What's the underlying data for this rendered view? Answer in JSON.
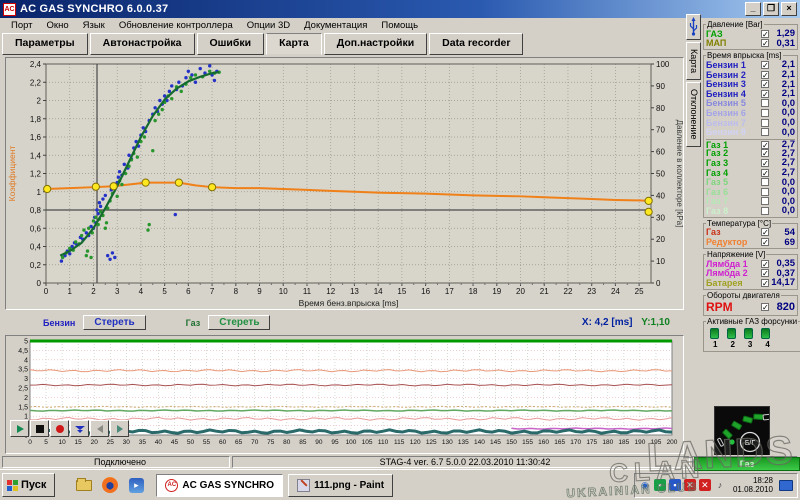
{
  "window": {
    "title": "AC GAS SYNCHRO  6.0.0.37"
  },
  "menu": {
    "items": [
      "Порт",
      "Окно",
      "Язык",
      "Обновление контроллера",
      "Опции 3D",
      "Документация",
      "Помощь"
    ]
  },
  "tabs": {
    "items": [
      {
        "label": "Параметры",
        "active": false
      },
      {
        "label": "Автонастройка",
        "active": false
      },
      {
        "label": "Ошибки",
        "active": false
      },
      {
        "label": "Карта",
        "active": true
      },
      {
        "label": "Доп.настройки",
        "active": false
      },
      {
        "label": "Data recorder",
        "active": false
      }
    ]
  },
  "side_tabs": {
    "items": [
      "Карта",
      "Отклонение"
    ]
  },
  "map_footer": {
    "petrol_label": "Бензин",
    "petrol_clear": "Стереть",
    "gas_label": "Газ",
    "gas_clear": "Стереть",
    "cursor_x": "X:  4,2 [ms]",
    "cursor_y": "Y:1,10"
  },
  "chart_data": [
    {
      "type": "scatter",
      "xlabel": "Время бенз.впрыска [ms]",
      "ylabel_left": "Коэффициент",
      "ylabel_right": "Давление в коллекторе [kPa]",
      "xlim": [
        0,
        25.5
      ],
      "x_tick_step": 1,
      "ylim_left": [
        0,
        2.4
      ],
      "y_left_step": 0.2,
      "ylim_right": [
        0,
        100
      ],
      "y_right_step": 10,
      "grid": true,
      "crosshair": {
        "x": 2.15,
        "y": 0.8
      },
      "fit_curve": {
        "color": "#156b2f",
        "points": [
          [
            0.6,
            0.3
          ],
          [
            1.0,
            0.35
          ],
          [
            1.5,
            0.44
          ],
          [
            2.0,
            0.6
          ],
          [
            2.5,
            0.82
          ],
          [
            3.0,
            1.06
          ],
          [
            3.5,
            1.33
          ],
          [
            4.0,
            1.6
          ],
          [
            4.5,
            1.83
          ],
          [
            5.0,
            2.01
          ],
          [
            5.5,
            2.13
          ],
          [
            6.0,
            2.21
          ],
          [
            6.5,
            2.26
          ],
          [
            7.0,
            2.3
          ],
          [
            7.3,
            2.31
          ]
        ]
      },
      "pressure_line": {
        "color": "#f08018",
        "points": [
          [
            0,
            1.03
          ],
          [
            1,
            1.04
          ],
          [
            2,
            1.05
          ],
          [
            2.85,
            1.06
          ],
          [
            3.5,
            1.08
          ],
          [
            4.2,
            1.1
          ],
          [
            5,
            1.1
          ],
          [
            5.6,
            1.1
          ],
          [
            6.3,
            1.07
          ],
          [
            7,
            1.05
          ],
          [
            8,
            1.04
          ],
          [
            9,
            1.04
          ],
          [
            10,
            1.03
          ],
          [
            11,
            1.02
          ],
          [
            12,
            1.01
          ],
          [
            13,
            1.0
          ],
          [
            14,
            0.99
          ],
          [
            15,
            0.985
          ],
          [
            16,
            0.98
          ],
          [
            17,
            0.97
          ],
          [
            18,
            0.96
          ],
          [
            19,
            0.955
          ],
          [
            20,
            0.95
          ],
          [
            21,
            0.94
          ],
          [
            22,
            0.93
          ],
          [
            23,
            0.92
          ],
          [
            24,
            0.91
          ],
          [
            25,
            0.905
          ],
          [
            25.4,
            0.9
          ]
        ],
        "markers": [
          [
            0.05,
            1.03
          ],
          [
            2.1,
            1.055
          ],
          [
            2.85,
            1.06
          ],
          [
            4.2,
            1.1
          ],
          [
            5.6,
            1.1
          ],
          [
            7.0,
            1.05
          ],
          [
            25.4,
            0.9
          ],
          [
            25.4,
            0.78
          ]
        ]
      },
      "scatter_blue": {
        "color": "#2432c8",
        "points": [
          [
            0.65,
            0.24
          ],
          [
            0.8,
            0.3
          ],
          [
            0.9,
            0.35
          ],
          [
            1.0,
            0.32
          ],
          [
            1.1,
            0.4
          ],
          [
            1.2,
            0.44
          ],
          [
            1.3,
            0.42
          ],
          [
            1.45,
            0.5
          ],
          [
            1.55,
            0.48
          ],
          [
            1.7,
            0.55
          ],
          [
            1.8,
            0.52
          ],
          [
            1.9,
            0.62
          ],
          [
            2.0,
            0.6
          ],
          [
            2.05,
            0.72
          ],
          [
            2.1,
            0.66
          ],
          [
            2.15,
            0.8
          ],
          [
            2.2,
            0.76
          ],
          [
            2.25,
            0.88
          ],
          [
            2.3,
            0.84
          ],
          [
            2.4,
            0.92
          ],
          [
            2.5,
            0.96
          ],
          [
            2.6,
            0.3
          ],
          [
            2.7,
            0.26
          ],
          [
            2.75,
            1.02
          ],
          [
            2.8,
            0.33
          ],
          [
            2.9,
            0.28
          ],
          [
            3.0,
            1.1
          ],
          [
            3.05,
            1.16
          ],
          [
            3.1,
            1.22
          ],
          [
            3.2,
            1.18
          ],
          [
            3.3,
            1.3
          ],
          [
            3.45,
            1.26
          ],
          [
            3.5,
            1.4
          ],
          [
            3.6,
            1.36
          ],
          [
            3.7,
            1.48
          ],
          [
            3.8,
            1.55
          ],
          [
            3.9,
            1.5
          ],
          [
            4.0,
            1.62
          ],
          [
            4.1,
            1.7
          ],
          [
            4.2,
            1.66
          ],
          [
            4.35,
            1.78
          ],
          [
            4.5,
            1.85
          ],
          [
            4.6,
            1.92
          ],
          [
            4.7,
            1.88
          ],
          [
            4.8,
            2.0
          ],
          [
            4.9,
            1.96
          ],
          [
            5.0,
            2.05
          ],
          [
            5.1,
            2.0
          ],
          [
            5.2,
            2.1
          ],
          [
            5.3,
            2.16
          ],
          [
            5.45,
            0.75
          ],
          [
            5.5,
            2.12
          ],
          [
            5.6,
            2.2
          ],
          [
            5.75,
            2.16
          ],
          [
            5.9,
            2.25
          ],
          [
            6.0,
            2.32
          ],
          [
            6.15,
            2.28
          ],
          [
            6.3,
            2.2
          ],
          [
            6.5,
            2.35
          ],
          [
            6.7,
            2.3
          ],
          [
            6.9,
            2.38
          ],
          [
            7.0,
            2.28
          ],
          [
            7.1,
            2.22
          ],
          [
            7.2,
            2.32
          ]
        ]
      },
      "scatter_green": {
        "color": "#28962c",
        "points": [
          [
            0.7,
            0.28
          ],
          [
            0.85,
            0.33
          ],
          [
            1.0,
            0.38
          ],
          [
            1.15,
            0.36
          ],
          [
            1.25,
            0.45
          ],
          [
            1.4,
            0.43
          ],
          [
            1.5,
            0.52
          ],
          [
            1.6,
            0.58
          ],
          [
            1.7,
            0.3
          ],
          [
            1.75,
            0.35
          ],
          [
            1.8,
            0.6
          ],
          [
            1.9,
            0.28
          ],
          [
            1.95,
            0.55
          ],
          [
            2.0,
            0.68
          ],
          [
            2.1,
            0.72
          ],
          [
            2.2,
            0.64
          ],
          [
            2.25,
            0.7
          ],
          [
            2.3,
            0.78
          ],
          [
            2.4,
            0.74
          ],
          [
            2.5,
            0.6
          ],
          [
            2.55,
            0.66
          ],
          [
            2.6,
            0.82
          ],
          [
            2.7,
            0.9
          ],
          [
            2.8,
            0.98
          ],
          [
            2.9,
            1.05
          ],
          [
            3.0,
            0.95
          ],
          [
            3.1,
            1.12
          ],
          [
            3.2,
            1.08
          ],
          [
            3.35,
            1.2
          ],
          [
            3.5,
            1.28
          ],
          [
            3.6,
            1.35
          ],
          [
            3.7,
            1.42
          ],
          [
            3.85,
            1.38
          ],
          [
            4.0,
            1.55
          ],
          [
            4.15,
            1.6
          ],
          [
            4.3,
            0.58
          ],
          [
            4.35,
            0.64
          ],
          [
            4.5,
            1.45
          ],
          [
            4.6,
            1.78
          ],
          [
            4.75,
            1.85
          ],
          [
            4.9,
            1.9
          ],
          [
            5.0,
            1.98
          ],
          [
            5.15,
            2.05
          ],
          [
            5.3,
            2.02
          ],
          [
            5.5,
            2.15
          ],
          [
            5.7,
            2.1
          ],
          [
            5.9,
            2.18
          ],
          [
            6.1,
            2.25
          ],
          [
            6.3,
            2.28
          ],
          [
            6.6,
            2.26
          ],
          [
            6.9,
            2.32
          ],
          [
            7.1,
            2.3
          ],
          [
            7.3,
            2.31
          ]
        ]
      }
    },
    {
      "type": "line",
      "xlim": [
        0,
        200
      ],
      "x_tick_step": 5,
      "ylim": [
        0,
        5
      ],
      "y_tick_step": 0.5,
      "grid": true,
      "series": [
        {
          "name": "upper-limit",
          "y": 5.0,
          "color": "#009900",
          "width": 3,
          "amp": 0
        },
        {
          "name": "trace-salmon-high",
          "y": 3.42,
          "color": "#e89878",
          "width": 1,
          "amp": 0.04
        },
        {
          "name": "trace-dark-red",
          "y": 2.66,
          "color": "#a85050",
          "width": 1,
          "amp": 0.03
        },
        {
          "name": "trace-olive-dotted",
          "y": 1.5,
          "color": "#c8a868",
          "width": 1,
          "amp": 0.02,
          "dash": "2,2"
        },
        {
          "name": "trace-green",
          "y": 1.3,
          "color": "#60a860",
          "width": 1.5,
          "amp": 0.02
        },
        {
          "name": "trace-salmon-low",
          "y": 0.86,
          "color": "#e89898",
          "width": 1,
          "amp": 0.05
        },
        {
          "name": "trace-magenta",
          "y": 0.34,
          "color": "#c864c8",
          "width": 1.5,
          "amp": 0.02,
          "from": 150
        },
        {
          "name": "noise-band",
          "y": 0.18,
          "color": "#2a6a6a",
          "width": 3,
          "amp": 0.06
        }
      ]
    }
  ],
  "right_panel": {
    "groups": [
      {
        "title": "Давление [Bar]",
        "rows": [
          {
            "label": "ГАЗ",
            "color": "#00a000",
            "checked": true,
            "value": "1,29"
          },
          {
            "label": "МАП",
            "color": "#808000",
            "checked": true,
            "value": "0,31"
          }
        ]
      },
      {
        "title": "Время впрыска [ms]",
        "rows": [
          {
            "label": "Бензин 1",
            "color": "#2020c0",
            "checked": true,
            "value": "2,1"
          },
          {
            "label": "Бензин 2",
            "color": "#2020c0",
            "checked": true,
            "value": "2,1"
          },
          {
            "label": "Бензин 3",
            "color": "#2020c0",
            "checked": true,
            "value": "2,1"
          },
          {
            "label": "Бензин 4",
            "color": "#2020c0",
            "checked": true,
            "value": "2,1"
          },
          {
            "label": "Бензин 5",
            "color": "#8888dc",
            "checked": false,
            "value": "0,0"
          },
          {
            "label": "Бензин 6",
            "color": "#a3a3e6",
            "checked": false,
            "value": "0,0"
          },
          {
            "label": "Бензин 7",
            "color": "#bcbcee",
            "checked": false,
            "value": "0,0"
          },
          {
            "label": "Бензин 8",
            "color": "#d2d2f4",
            "checked": false,
            "value": "0,0"
          },
          {
            "label": "Газ 1",
            "color": "#00a000",
            "checked": true,
            "value": "2,7",
            "sep": true
          },
          {
            "label": "Газ 2",
            "color": "#00a000",
            "checked": true,
            "value": "2,7"
          },
          {
            "label": "Газ 3",
            "color": "#00a000",
            "checked": true,
            "value": "2,7"
          },
          {
            "label": "Газ 4",
            "color": "#00a000",
            "checked": true,
            "value": "2,7"
          },
          {
            "label": "Газ 5",
            "color": "#7cd67c",
            "checked": false,
            "value": "0,0"
          },
          {
            "label": "Газ 6",
            "color": "#96e096",
            "checked": false,
            "value": "0,0"
          },
          {
            "label": "Газ 7",
            "color": "#b2eab2",
            "checked": false,
            "value": "0,0"
          },
          {
            "label": "Газ 8",
            "color": "#caf2ca",
            "checked": false,
            "value": "0,0"
          }
        ]
      },
      {
        "title": "Температура  [°C]",
        "rows": [
          {
            "label": "Газ",
            "color": "#c83018",
            "checked": true,
            "value": "54"
          },
          {
            "label": "Редуктор",
            "color": "#f08030",
            "checked": true,
            "value": "69"
          }
        ]
      },
      {
        "title": "Напряжение [V]",
        "rows": [
          {
            "label": "Лямбда 1",
            "color": "#d020d0",
            "checked": true,
            "value": "0,35"
          },
          {
            "label": "Лямбда 2",
            "color": "#d020d0",
            "checked": true,
            "value": "0,37"
          },
          {
            "label": "Батарея",
            "color": "#a0a020",
            "checked": true,
            "value": "14,17"
          }
        ]
      },
      {
        "title": "Обороты двигателя",
        "rows": [
          {
            "label": "RPM",
            "color": "#e01010",
            "checked": true,
            "value": "820",
            "big": true
          }
        ]
      },
      {
        "title": "Активные ГАЗ форсунки",
        "injectors": [
          "1",
          "2",
          "3",
          "4"
        ]
      }
    ]
  },
  "gauge": {
    "switch_label": "Б/Г",
    "fuel_label": "Газ",
    "segments_on": 4,
    "segments_total": 6
  },
  "status_bar": {
    "left": "Подключено",
    "center": "STAG-4   ver. 6.7   5.0.0      22.03.2010 11:30:42"
  },
  "taskbar": {
    "start": "Пуск",
    "wmp_glyph": "▸",
    "tasks": [
      {
        "label": "AC GAS SYNCHRO",
        "active": true,
        "icon": "AC"
      },
      {
        "label": "111.png - Paint",
        "active": false,
        "icon": "paint"
      }
    ],
    "tray_icons": [
      {
        "name": "status-blue-icon",
        "glyph": "◉",
        "color": "#2060d0",
        "bg": "transparent"
      },
      {
        "name": "agent-green-icon",
        "glyph": "▪",
        "color": "#ffffff",
        "bg": "#18a048"
      },
      {
        "name": "update-blue-icon",
        "glyph": "▪",
        "color": "#ffffff",
        "bg": "#2858c8"
      },
      {
        "name": "alert-red-icon",
        "glyph": "✕",
        "color": "#ffffff",
        "bg": "#d02020"
      },
      {
        "name": "alert-red2-icon",
        "glyph": "✕",
        "color": "#ffffff",
        "bg": "#d02020"
      },
      {
        "name": "volume-icon",
        "glyph": "♪",
        "color": "#404040",
        "bg": "transparent"
      }
    ],
    "clock": {
      "time": "18:28",
      "date": "01.08.2010"
    }
  },
  "watermark": {
    "line1": "LANDS",
    "line2": "CLAN",
    "line3": "UKRAINIAN CLUB"
  }
}
